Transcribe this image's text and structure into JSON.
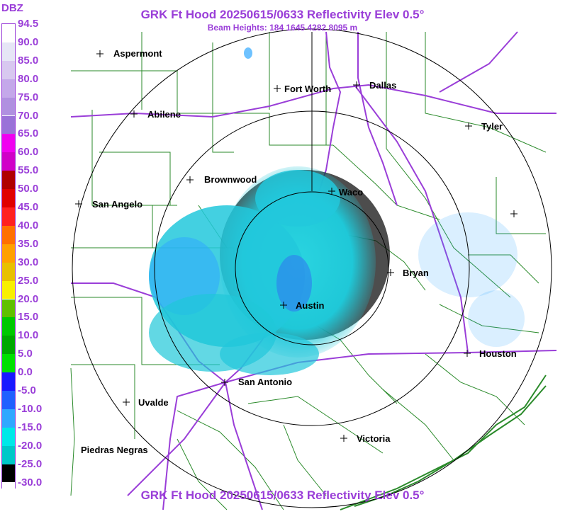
{
  "title": "GRK Ft Hood 20250615/0633 Reflectivity Elev 0.5°",
  "subtitle": "Beam Heights: 184 1645 4282 8095 m",
  "legend": {
    "unit": "DBZ",
    "values": [
      "94.5",
      "90.0",
      "85.0",
      "80.0",
      "75.0",
      "70.0",
      "65.0",
      "60.0",
      "55.0",
      "50.0",
      "45.0",
      "40.0",
      "35.0",
      "30.0",
      "25.0",
      "20.0",
      "15.0",
      "10.0",
      "5.0",
      "0.0",
      "-5.0",
      "-10.0",
      "-15.0",
      "-20.0",
      "-25.0",
      "-30.0"
    ],
    "colors": [
      "#ffffff",
      "#e6e6f6",
      "#d8c8f0",
      "#c4a8ea",
      "#b090e0",
      "#9a72d8",
      "#f000f0",
      "#d000c8",
      "#b00000",
      "#e00000",
      "#ff2020",
      "#ff7000",
      "#ffa000",
      "#e8c000",
      "#f8f000",
      "#60c000",
      "#00c800",
      "#00a800",
      "#00e000",
      "#1818ff",
      "#2060ff",
      "#30a8ff",
      "#00e8e8",
      "#00c8c8",
      "#000000",
      "#ffffff"
    ]
  },
  "cities": [
    {
      "name": "Aspermont"
    },
    {
      "name": "Fort Worth"
    },
    {
      "name": "Dallas"
    },
    {
      "name": "Abilene"
    },
    {
      "name": "Tyler"
    },
    {
      "name": "Brownwood"
    },
    {
      "name": "Waco"
    },
    {
      "name": "San Angelo"
    },
    {
      "name": "Bryan"
    },
    {
      "name": "Austin"
    },
    {
      "name": "Houston"
    },
    {
      "name": "San Antonio"
    },
    {
      "name": "Uvalde"
    },
    {
      "name": "Victoria"
    },
    {
      "name": "Piedras Negras"
    }
  ],
  "colors": {
    "title": "#9a3ed8",
    "highways": "#9a3ed8",
    "county_lines": "#2a8a2a",
    "range_rings": "#000000",
    "echo_main": "#20d8d8",
    "echo_light": "#30a8ff",
    "echo_dark": "#000000"
  }
}
